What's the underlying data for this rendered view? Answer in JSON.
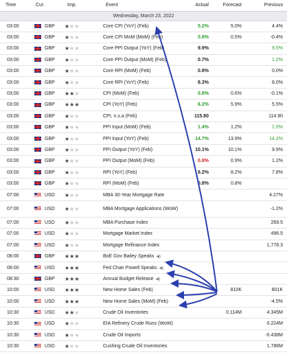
{
  "header": {
    "time": "Time",
    "cur": "Cur.",
    "imp": "Imp.",
    "event": "Event",
    "actual": "Actual",
    "forecast": "Forecast",
    "previous": "Previous"
  },
  "date_label": "Wednesday, March 23, 2022",
  "colors": {
    "green": "#2e9b2e",
    "red": "#d42020",
    "arrow": "#2a3fae"
  },
  "rows": [
    {
      "time": "03:00",
      "cur": "GBP",
      "flag": "gb",
      "imp": 1,
      "event": "Core CPI (YoY) (Feb)",
      "actual": "5.2%",
      "actual_color": "green",
      "forecast": "5.0%",
      "previous": "4.4%",
      "prev_color": ""
    },
    {
      "time": "03:00",
      "cur": "GBP",
      "flag": "gb",
      "imp": 1,
      "event": "Core CPI MoM (MoM) (Feb)",
      "actual": "0.8%",
      "actual_color": "green",
      "forecast": "0.5%",
      "previous": "-0.4%",
      "prev_color": ""
    },
    {
      "time": "03:00",
      "cur": "GBP",
      "flag": "gb",
      "imp": 1,
      "event": "Core PPI Output (YoY) (Feb)",
      "actual": "9.9%",
      "actual_color": "",
      "forecast": "",
      "previous": "9.5%",
      "prev_color": "green"
    },
    {
      "time": "03:00",
      "cur": "GBP",
      "flag": "gb",
      "imp": 1,
      "event": "Core PPI Output (MoM) (Feb)",
      "actual": "0.7%",
      "actual_color": "",
      "forecast": "",
      "previous": "1.2%",
      "prev_color": "green"
    },
    {
      "time": "03:00",
      "cur": "GBP",
      "flag": "gb",
      "imp": 1,
      "event": "Core RPI (MoM) (Feb)",
      "actual": "0.8%",
      "actual_color": "",
      "forecast": "",
      "previous": "0.0%",
      "prev_color": ""
    },
    {
      "time": "03:00",
      "cur": "GBP",
      "flag": "gb",
      "imp": 1,
      "event": "Core RPI (YoY) (Feb)",
      "actual": "8.3%",
      "actual_color": "",
      "forecast": "",
      "previous": "8.0%",
      "prev_color": ""
    },
    {
      "time": "03:00",
      "cur": "GBP",
      "flag": "gb",
      "imp": 2,
      "event": "CPI (MoM) (Feb)",
      "actual": "0.8%",
      "actual_color": "green",
      "forecast": "0.6%",
      "previous": "-0.1%",
      "prev_color": ""
    },
    {
      "time": "03:00",
      "cur": "GBP",
      "flag": "gb",
      "imp": 3,
      "event": "CPI (YoY) (Feb)",
      "actual": "6.2%",
      "actual_color": "green",
      "forecast": "5.9%",
      "previous": "5.5%",
      "prev_color": ""
    },
    {
      "time": "03:00",
      "cur": "GBP",
      "flag": "gb",
      "imp": 1,
      "event": "CPI, n.s.a (Feb)",
      "actual": "115.80",
      "actual_color": "",
      "forecast": "",
      "previous": "114.90",
      "prev_color": ""
    },
    {
      "time": "03:00",
      "cur": "GBP",
      "flag": "gb",
      "imp": 1,
      "event": "PPI Input (MoM) (Feb)",
      "actual": "1.4%",
      "actual_color": "green",
      "forecast": "1.2%",
      "previous": "1.5%",
      "prev_color": "green"
    },
    {
      "time": "03:00",
      "cur": "GBP",
      "flag": "gb",
      "imp": 1,
      "event": "PPI Input (YoY) (Feb)",
      "actual": "14.7%",
      "actual_color": "green",
      "forecast": "13.9%",
      "previous": "14.2%",
      "prev_color": "green"
    },
    {
      "time": "03:00",
      "cur": "GBP",
      "flag": "gb",
      "imp": 1,
      "event": "PPI Output (YoY) (Feb)",
      "actual": "10.1%",
      "actual_color": "",
      "forecast": "10.1%",
      "previous": "9.9%",
      "prev_color": ""
    },
    {
      "time": "03:00",
      "cur": "GBP",
      "flag": "gb",
      "imp": 1,
      "event": "PPI Output (MoM) (Feb)",
      "actual": "0.8%",
      "actual_color": "red",
      "forecast": "0.9%",
      "previous": "1.2%",
      "prev_color": ""
    },
    {
      "time": "03:00",
      "cur": "GBP",
      "flag": "gb",
      "imp": 1,
      "event": "RPI (YoY) (Feb)",
      "actual": "8.2%",
      "actual_color": "",
      "forecast": "8.2%",
      "previous": "7.8%",
      "prev_color": ""
    },
    {
      "time": "03:00",
      "cur": "GBP",
      "flag": "gb",
      "imp": 1,
      "event": "RPI (MoM) (Feb)",
      "actual": "0.8%",
      "actual_color": "",
      "forecast": "0.8%",
      "previous": "",
      "prev_color": ""
    },
    {
      "time": "07:00",
      "cur": "USD",
      "flag": "us",
      "imp": 1,
      "event": "MBA 30-Year Mortgage Rate",
      "actual": "",
      "actual_color": "",
      "forecast": "",
      "previous": "4.27%",
      "prev_color": ""
    },
    {
      "time": "07:00",
      "cur": "USD",
      "flag": "us",
      "imp": 1,
      "event": "MBA Mortgage Applications (WoW)",
      "actual": "",
      "actual_color": "",
      "forecast": "",
      "previous": "-1.2%",
      "prev_color": "",
      "tall": true
    },
    {
      "time": "07:00",
      "cur": "USD",
      "flag": "us",
      "imp": 1,
      "event": "MBA Purchase Index",
      "actual": "",
      "actual_color": "",
      "forecast": "",
      "previous": "269.5",
      "prev_color": ""
    },
    {
      "time": "07:00",
      "cur": "USD",
      "flag": "us",
      "imp": 1,
      "event": "Mortgage Market Index",
      "actual": "",
      "actual_color": "",
      "forecast": "",
      "previous": "496.5",
      "prev_color": ""
    },
    {
      "time": "07:00",
      "cur": "USD",
      "flag": "us",
      "imp": 1,
      "event": "Mortgage Refinance Index",
      "actual": "",
      "actual_color": "",
      "forecast": "",
      "previous": "1,778.3",
      "prev_color": ""
    },
    {
      "time": "08:00",
      "cur": "GBP",
      "flag": "gb",
      "imp": 3,
      "event": "BoE Gov Bailey Speaks",
      "speaker": true,
      "actual": "",
      "actual_color": "",
      "forecast": "",
      "previous": "",
      "prev_color": ""
    },
    {
      "time": "08:00",
      "cur": "USD",
      "flag": "us",
      "imp": 3,
      "event": "Fed Chair Powell Speaks",
      "speaker": true,
      "actual": "",
      "actual_color": "",
      "forecast": "",
      "previous": "",
      "prev_color": ""
    },
    {
      "time": "08:30",
      "cur": "GBP",
      "flag": "gb",
      "imp": 3,
      "event": "Annual Budget Release",
      "speaker": true,
      "actual": "",
      "actual_color": "",
      "forecast": "",
      "previous": "",
      "prev_color": ""
    },
    {
      "time": "10:00",
      "cur": "USD",
      "flag": "us",
      "imp": 3,
      "event": "New Home Sales (Feb)",
      "actual": "",
      "actual_color": "",
      "forecast": "810K",
      "previous": "801K",
      "prev_color": ""
    },
    {
      "time": "10:00",
      "cur": "USD",
      "flag": "us",
      "imp": 3,
      "event": "New Home Sales (MoM) (Feb)",
      "actual": "",
      "actual_color": "",
      "forecast": "",
      "previous": "-4.5%",
      "prev_color": ""
    },
    {
      "time": "10:30",
      "cur": "USD",
      "flag": "us",
      "imp": 2,
      "event": "Crude Oil Inventories",
      "actual": "",
      "actual_color": "",
      "forecast": "0.114M",
      "previous": "4.345M",
      "prev_color": ""
    },
    {
      "time": "10:30",
      "cur": "USD",
      "flag": "us",
      "imp": 1,
      "event": "EIA Refinery Crude Runs (WoW)",
      "actual": "",
      "actual_color": "",
      "forecast": "",
      "previous": "0.224M",
      "prev_color": ""
    },
    {
      "time": "10:30",
      "cur": "USD",
      "flag": "us",
      "imp": 1,
      "event": "Crude Oil Imports",
      "actual": "",
      "actual_color": "",
      "forecast": "",
      "previous": "-0.438M",
      "prev_color": ""
    },
    {
      "time": "10:30",
      "cur": "USD",
      "flag": "us",
      "imp": 1,
      "event": "Cushing Crude Oil Inventories",
      "actual": "",
      "actual_color": "",
      "forecast": "",
      "previous": "1.786M",
      "prev_color": ""
    }
  ]
}
